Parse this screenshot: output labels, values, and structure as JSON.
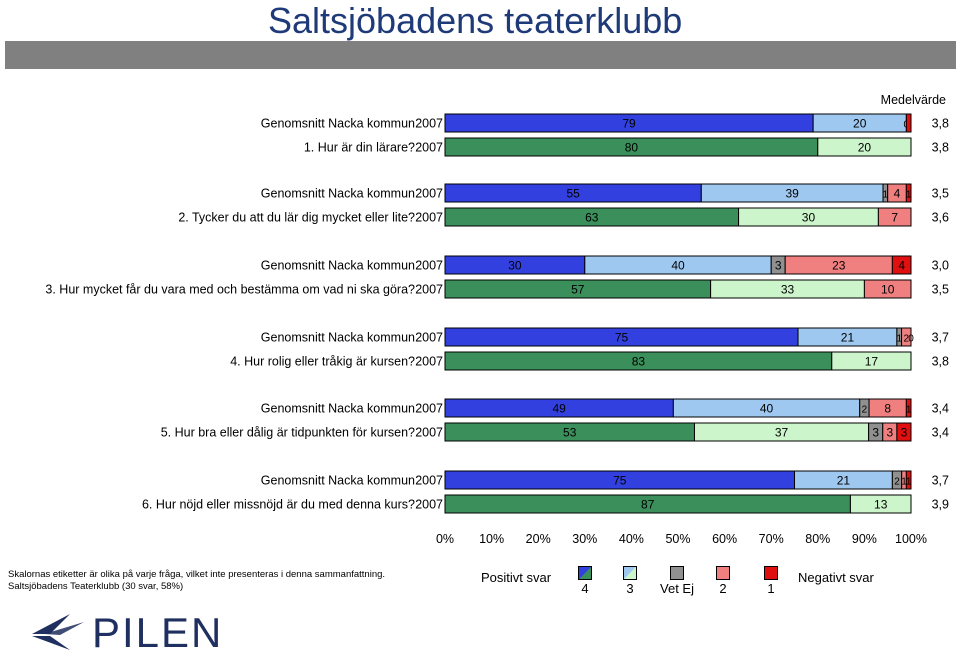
{
  "title": "Saltsjöbadens teaterklubb",
  "medelvarde_label": "Medelvärde",
  "colors": {
    "c4": "#3340e0",
    "c3": "#9fc8f0",
    "vetej": "#909090",
    "c2": "#f08080",
    "c1": "#e01010",
    "club1": "#3a8f5a",
    "club2": "#ccf5cc",
    "club_vetej": "#909090",
    "club_c2": "#f08080",
    "club_c1": "#e01010"
  },
  "chart_data": {
    "type": "stacked-bar",
    "xlim": [
      0,
      100
    ],
    "xticks": [
      "0%",
      "10%",
      "20%",
      "30%",
      "40%",
      "50%",
      "60%",
      "70%",
      "80%",
      "90%",
      "100%"
    ],
    "categories_order": [
      "4",
      "3",
      "Vet Ej",
      "2",
      "1"
    ],
    "groups": [
      {
        "question": "1. Hur är din lärare?",
        "rows": [
          {
            "label": "Genomsnitt Nacka kommun",
            "year": "2007",
            "kind": "nacka",
            "values": [
              79,
              20,
              0,
              0,
              1
            ],
            "labels": [
              "79",
              "20",
              "0",
              "",
              ""
            ],
            "mean": "3,8"
          },
          {
            "label": "1. Hur är din lärare?",
            "year": "2007",
            "kind": "club",
            "values": [
              80,
              20,
              0,
              0,
              0
            ],
            "labels": [
              "80",
              "20",
              "",
              "",
              ""
            ],
            "mean": "3,8"
          }
        ]
      },
      {
        "question": "2. Tycker du att du lär dig mycket eller lite?",
        "rows": [
          {
            "label": "Genomsnitt Nacka kommun",
            "year": "2007",
            "kind": "nacka",
            "values": [
              55,
              39,
              1,
              4,
              1
            ],
            "labels": [
              "55",
              "39",
              "1",
              "4",
              "1"
            ],
            "mean": "3,5"
          },
          {
            "label": "2. Tycker du att du lär dig mycket eller lite?",
            "year": "2007",
            "kind": "club",
            "values": [
              63,
              30,
              0,
              7,
              0
            ],
            "labels": [
              "63",
              "30",
              "",
              "7",
              ""
            ],
            "mean": "3,6"
          }
        ]
      },
      {
        "question": "3. Hur mycket får du vara med och bestämma om vad ni ska göra?",
        "rows": [
          {
            "label": "Genomsnitt Nacka kommun",
            "year": "2007",
            "kind": "nacka",
            "values": [
              30,
              40,
              3,
              23,
              4
            ],
            "labels": [
              "30",
              "40",
              "3",
              "23",
              "4"
            ],
            "mean": "3,0"
          },
          {
            "label": "3. Hur mycket får du vara med och bestämma om vad ni ska göra?",
            "year": "2007",
            "kind": "club",
            "values": [
              57,
              33,
              0,
              10,
              0
            ],
            "labels": [
              "57",
              "33",
              "",
              "10",
              ""
            ],
            "mean": "3,5"
          }
        ]
      },
      {
        "question": "4. Hur rolig eller tråkig är kursen?",
        "rows": [
          {
            "label": "Genomsnitt Nacka kommun",
            "year": "2007",
            "kind": "nacka",
            "values": [
              75,
              21,
              1,
              2,
              0
            ],
            "labels": [
              "75",
              "21",
              "1",
              "2",
              "0"
            ],
            "mean": "3,7"
          },
          {
            "label": "4. Hur rolig eller tråkig är kursen?",
            "year": "2007",
            "kind": "club",
            "values": [
              83,
              17,
              0,
              0,
              0
            ],
            "labels": [
              "83",
              "17",
              "",
              "",
              ""
            ],
            "mean": "3,8"
          }
        ]
      },
      {
        "question": "5. Hur bra eller dålig är tidpunkten för kursen?",
        "rows": [
          {
            "label": "Genomsnitt Nacka kommun",
            "year": "2007",
            "kind": "nacka",
            "values": [
              49,
              40,
              2,
              8,
              1
            ],
            "labels": [
              "49",
              "40",
              "2",
              "8",
              "1"
            ],
            "mean": "3,4"
          },
          {
            "label": "5. Hur bra eller dålig är tidpunkten för kursen?",
            "year": "2007",
            "kind": "club",
            "values": [
              53,
              37,
              3,
              3,
              3
            ],
            "labels": [
              "53",
              "37",
              "3",
              "3",
              "3"
            ],
            "mean": "3,4"
          }
        ]
      },
      {
        "question": "6. Hur nöjd eller missnöjd är du med denna kurs?",
        "rows": [
          {
            "label": "Genomsnitt Nacka kommun",
            "year": "2007",
            "kind": "nacka",
            "values": [
              75,
              21,
              2,
              1,
              1
            ],
            "labels": [
              "75",
              "21",
              "2",
              "1",
              "1"
            ],
            "mean": "3,7"
          },
          {
            "label": "6. Hur nöjd eller missnöjd är du med denna kurs?",
            "year": "2007",
            "kind": "club",
            "values": [
              87,
              13,
              0,
              0,
              0
            ],
            "labels": [
              "87",
              "13",
              "",
              "",
              ""
            ],
            "mean": "3,9"
          }
        ]
      }
    ]
  },
  "footnote": {
    "line1": "Skalornas etiketter är olika på varje fråga, vilket inte presenteras i denna sammanfattning.",
    "line2": "Saltsjöbadens Teaterklubb (30 svar, 58%)"
  },
  "legend": {
    "positive": "Positivt svar",
    "negative": "Negativt svar",
    "items": [
      "4",
      "3",
      "Vet Ej",
      "2",
      "1"
    ]
  },
  "logo": {
    "text": "PILEN"
  }
}
